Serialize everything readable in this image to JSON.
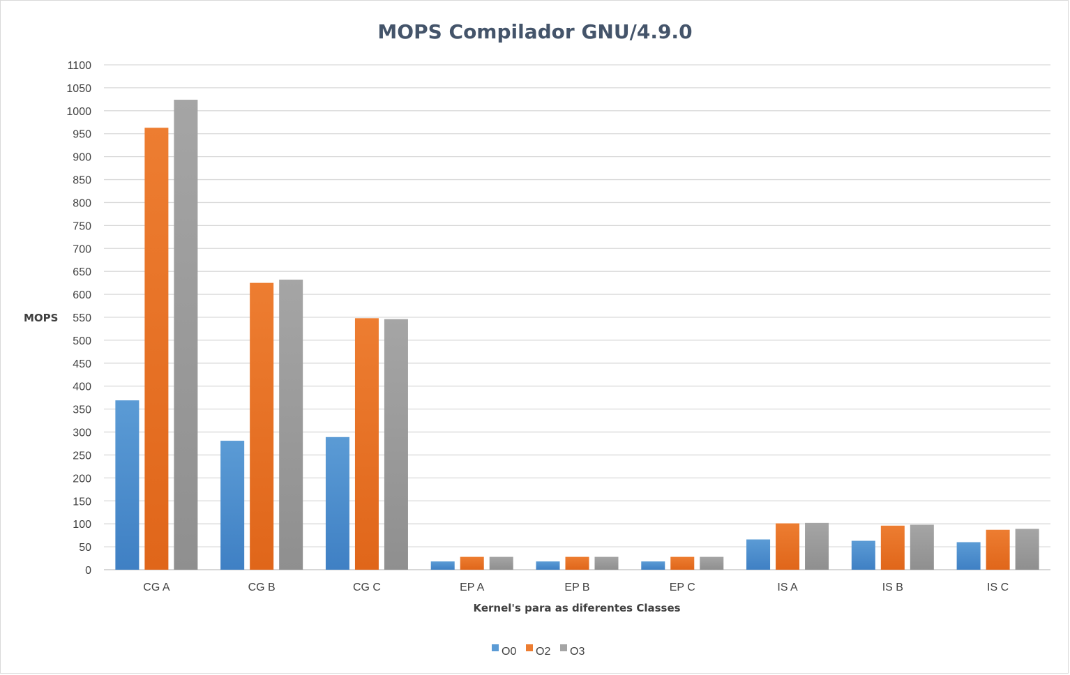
{
  "chart_data": {
    "type": "bar",
    "title": "MOPS Compilador GNU/4.9.0",
    "xlabel": "Kernel's para as diferentes Classes",
    "ylabel": "MOPS",
    "ylim": [
      0,
      1100
    ],
    "ytick_step": 50,
    "grid": true,
    "legend_position": "bottom",
    "categories": [
      "CG A",
      "CG B",
      "CG C",
      "EP A",
      "EP B",
      "EP C",
      "IS A",
      "IS B",
      "IS C"
    ],
    "series": [
      {
        "name": "O0",
        "color": "#5b9bd5",
        "color_dark": "#3f80c4",
        "values": [
          369,
          281,
          289,
          18,
          18,
          18,
          66,
          63,
          60
        ]
      },
      {
        "name": "O2",
        "color": "#ed7d31",
        "color_dark": "#e0661a",
        "values": [
          963,
          625,
          548,
          28,
          28,
          28,
          101,
          96,
          87
        ]
      },
      {
        "name": "O3",
        "color": "#a5a5a5",
        "color_dark": "#8f8f8f",
        "values": [
          1024,
          632,
          546,
          28,
          28,
          28,
          102,
          98,
          89
        ]
      }
    ]
  }
}
